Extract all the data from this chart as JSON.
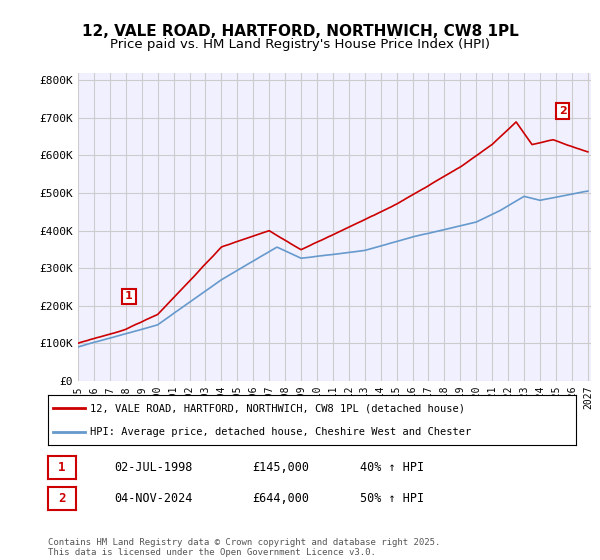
{
  "title": "12, VALE ROAD, HARTFORD, NORTHWICH, CW8 1PL",
  "subtitle": "Price paid vs. HM Land Registry's House Price Index (HPI)",
  "ylabel_ticks": [
    "£0",
    "£100K",
    "£200K",
    "£300K",
    "£400K",
    "£500K",
    "£600K",
    "£700K",
    "£800K"
  ],
  "ytick_values": [
    0,
    100000,
    200000,
    300000,
    400000,
    500000,
    600000,
    700000,
    800000
  ],
  "ylim": [
    0,
    820000
  ],
  "xlim_start": 1995.3,
  "xlim_end": 2027.2,
  "xticks": [
    1995,
    1996,
    1997,
    1998,
    1999,
    2000,
    2001,
    2002,
    2003,
    2004,
    2005,
    2006,
    2007,
    2008,
    2009,
    2010,
    2011,
    2012,
    2013,
    2014,
    2015,
    2016,
    2017,
    2018,
    2019,
    2020,
    2021,
    2022,
    2023,
    2024,
    2025,
    2026,
    2027
  ],
  "red_color": "#cc0000",
  "blue_color": "#6699cc",
  "grid_color": "#cccccc",
  "bg_color": "#f0f0ff",
  "annotation1_label": "1",
  "annotation1_year": 1998.5,
  "annotation1_value": 145000,
  "annotation2_label": "2",
  "annotation2_year": 2024.83,
  "annotation2_value": 644000,
  "legend_line1": "12, VALE ROAD, HARTFORD, NORTHWICH, CW8 1PL (detached house)",
  "legend_line2": "HPI: Average price, detached house, Cheshire West and Chester",
  "table_row1": [
    "1",
    "02-JUL-1998",
    "£145,000",
    "40% ↑ HPI"
  ],
  "table_row2": [
    "2",
    "04-NOV-2024",
    "£644,000",
    "50% ↑ HPI"
  ],
  "footer": "Contains HM Land Registry data © Crown copyright and database right 2025.\nThis data is licensed under the Open Government Licence v3.0.",
  "title_fontsize": 11,
  "subtitle_fontsize": 9.5
}
